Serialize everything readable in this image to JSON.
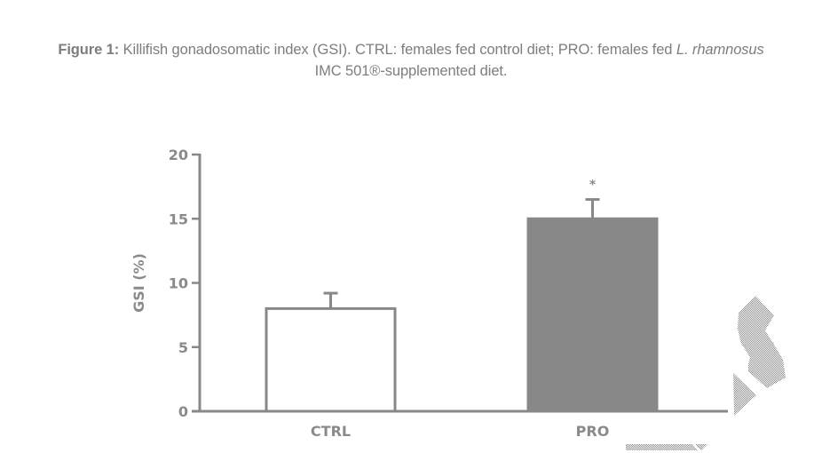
{
  "caption": {
    "lead": "Figure 1:",
    "part1": " Killifish gonadosomatic index (GSI). CTRL: females fed control diet; PRO: females fed ",
    "italic": "L. rhamnosus",
    "part2": "IMC 501®-supplemented diet."
  },
  "colors": {
    "axis": "#888888",
    "ctrl_fill": "#ffffff",
    "ctrl_stroke": "#888888",
    "pro_fill": "#888888",
    "text": "#8a8a8a",
    "watermark": "#999999"
  },
  "chart_data": {
    "type": "bar",
    "title": "",
    "xlabel": "",
    "ylabel": "GSI (%)",
    "ylim": [
      0,
      20
    ],
    "yticks": [
      0,
      5,
      10,
      15,
      20
    ],
    "ytick_labels": [
      "0",
      "5",
      "10",
      "15",
      "20"
    ],
    "grid": false,
    "legend": null,
    "categories": [
      "CTRL",
      "PRO"
    ],
    "values": [
      8.0,
      15.0
    ],
    "errors": [
      1.2,
      1.5
    ],
    "bar_styles": [
      "outline",
      "filled"
    ],
    "annotations": [
      {
        "category": "PRO",
        "text": "*",
        "meaning": "significant difference"
      }
    ]
  }
}
